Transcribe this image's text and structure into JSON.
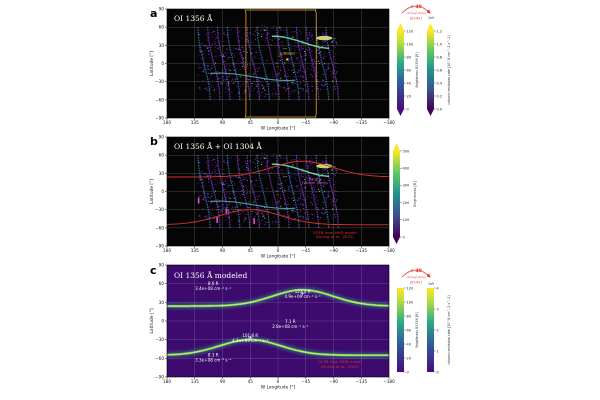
{
  "chart_data": [
    {
      "type": "map",
      "panel_label": "a",
      "title": "OI 1356 Å",
      "xlabel": "W Longitude [°]",
      "ylabel": "Latitude [°]",
      "xticks": [
        "180",
        "135",
        "90",
        "45",
        "0",
        "−45",
        "−90",
        "−135",
        "−180"
      ],
      "yticks": [
        "90",
        "60",
        "30",
        "0",
        "−30",
        "−60",
        "−90"
      ],
      "xlim": [
        180,
        -180
      ],
      "ylim": [
        -90,
        90
      ],
      "annotations": [
        {
          "text": "subsolar",
          "lon": -15,
          "lat": 15,
          "color": "#ffd21c"
        }
      ],
      "terminator_lon": [
        52,
        -62
      ],
      "colorbar_brightness": {
        "label": "Brightness B1356 [R]",
        "ticks": [
          "0",
          "20",
          "40",
          "60",
          "80",
          "100",
          "120"
        ],
        "max": 120
      },
      "colorbar_emission": {
        "label": "column emission rate [10^8 cm^-2 s^-1]",
        "ticks": [
          "0.0",
          "0.2",
          "0.4",
          "0.6",
          "0.8",
          "1.0",
          "1.2"
        ],
        "exponent": "1e9",
        "max": 1.2
      },
      "conversion_label": {
        "factor": "× 40",
        "ratio": "𝒜₁₃₅₆/𝒜₁₃₀₄",
        "ref": "(EI-42)"
      }
    },
    {
      "type": "map",
      "panel_label": "b",
      "title": "OI 1356 Å + OI 1304 Å",
      "xlabel": "W Longitude [°]",
      "ylabel": "Latitude [°]",
      "xticks": [
        "180",
        "135",
        "90",
        "45",
        "0",
        "−45",
        "−90",
        "−135",
        "−180"
      ],
      "yticks": [
        "90",
        "60",
        "30",
        "0",
        "−30",
        "−60",
        "−90"
      ],
      "xlim": [
        180,
        -180
      ],
      "ylim": [
        -90,
        90
      ],
      "annotations": [
        {
          "text": "Patera",
          "lon": -60,
          "lat": 18,
          "color": "#e24fd8"
        },
        {
          "text": "Fourier series",
          "lon": -60,
          "lat": 12,
          "color": "#e24fd8"
        },
        {
          "text": "OCFB from MHD model",
          "lon": -92,
          "lat": -70,
          "color": "#e3312a"
        },
        {
          "text": "(Duling et al., 2022)",
          "lon": -92,
          "lat": -77,
          "color": "#e3312a"
        }
      ],
      "colorbar_brightness": {
        "label": "Brightness [R]",
        "ticks": [
          "0",
          "100",
          "200",
          "300",
          "400",
          "500"
        ],
        "max": 500
      }
    },
    {
      "type": "heatmap",
      "panel_label": "c",
      "title": "OI 1356 Å modeled",
      "xlabel": "W Longitude [°]",
      "ylabel": "Latitude [°]",
      "xticks": [
        "180",
        "135",
        "90",
        "45",
        "0",
        "−45",
        "−90",
        "−135",
        "−180"
      ],
      "yticks": [
        "90",
        "60",
        "30",
        "0",
        "−30",
        "−60",
        "−90"
      ],
      "xlim": [
        180,
        -180
      ],
      "ylim": [
        -90,
        90
      ],
      "north_oval": {
        "lat_at_180": 24,
        "lat_peak": 50,
        "lon_peak": -40
      },
      "south_oval": {
        "lat_at_180": -55,
        "lat_peak": -30,
        "lon_peak": 45
      },
      "region_labels": [
        {
          "line1": "8.6 R",
          "line2": "3.4e+08 cm⁻² s⁻¹",
          "lon": 105,
          "lat": 58
        },
        {
          "line1": "123.4 R",
          "line2": "4.9e+09 cm⁻² s⁻¹",
          "lon": -40,
          "lat": 45
        },
        {
          "line1": "7.1 R",
          "line2": "2.8e+08 cm⁻² s⁻¹",
          "lon": -20,
          "lat": -3
        },
        {
          "line1": "101.8 R",
          "line2": "4.1e+09 cm⁻² s⁻¹",
          "lon": 45,
          "lat": -26
        },
        {
          "line1": "8.3 R",
          "line2": "3.3e+08 cm⁻² s⁻¹",
          "lon": 105,
          "lat": -57
        }
      ],
      "footnote": {
        "line1": "OCFB from MHD model",
        "line2": "(Duling et al., 2022)"
      },
      "colorbar_brightness": {
        "label": "Brightness B1356 [R]",
        "ticks": [
          "0",
          "20",
          "40",
          "60",
          "80",
          "100",
          "120"
        ],
        "max": 120
      },
      "colorbar_emission": {
        "label": "column emission rate [10^8 cm^-2 s^-1]",
        "ticks": [
          "0",
          "1",
          "2",
          "3",
          "4"
        ],
        "exponent": "1e9",
        "max": 4
      },
      "conversion_label": {
        "factor": "× 40",
        "ratio": "𝒜₁₃₅₆/𝒜₁₃₀₄",
        "ref": "(EI-42)"
      }
    }
  ],
  "colors": {
    "plasma_dark": "#1a0530",
    "plasma_bright": "#f7e225",
    "viridis_dark": "#440154",
    "viridis_bright": "#fde725",
    "terminator": "#f0a028",
    "ocfb": "#e3312a",
    "patera": "#e24fd8"
  }
}
